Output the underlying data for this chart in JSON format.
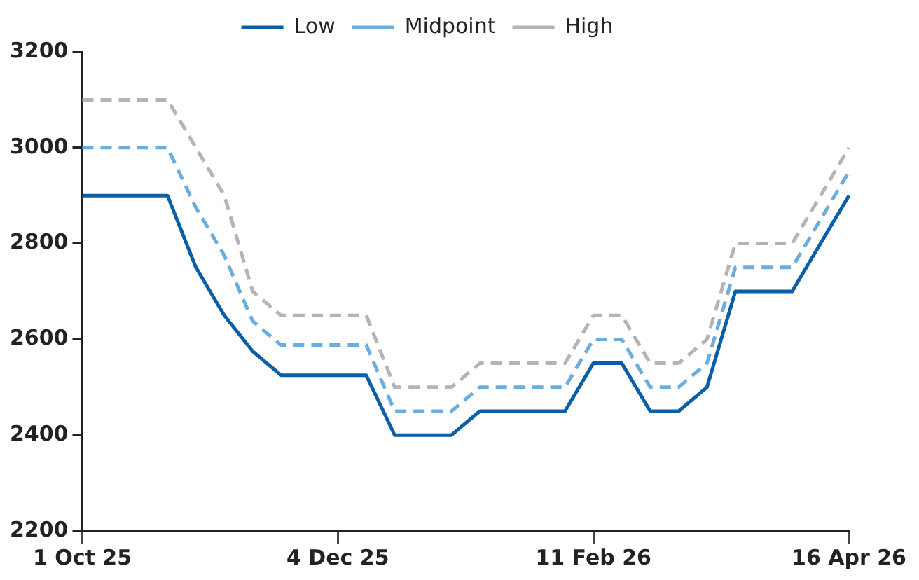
{
  "chart_data": {
    "type": "line",
    "categories": [
      "1 Oct 25",
      null,
      null,
      null,
      null,
      null,
      null,
      null,
      null,
      "4 Dec 25",
      null,
      null,
      null,
      null,
      null,
      null,
      null,
      null,
      "11 Feb 26",
      null,
      null,
      null,
      null,
      null,
      null,
      null,
      null,
      "16 Apr 26"
    ],
    "series": [
      {
        "name": "Low",
        "color": "#0b5fa8",
        "line_style": "solid",
        "values": [
          2900,
          2900,
          2900,
          2900,
          2750,
          2650,
          2575,
          2525,
          2525,
          2525,
          2525,
          2400,
          2400,
          2400,
          2450,
          2450,
          2450,
          2450,
          2550,
          2550,
          2450,
          2450,
          2500,
          2700,
          2700,
          2700,
          2800,
          2900
        ]
      },
      {
        "name": "Midpoint",
        "color": "#6aaee0",
        "line_style": "dashed",
        "values": [
          3000,
          3000,
          3000,
          3000,
          2875,
          2775,
          2638,
          2588,
          2588,
          2588,
          2588,
          2450,
          2450,
          2450,
          2500,
          2500,
          2500,
          2500,
          2600,
          2600,
          2500,
          2500,
          2550,
          2750,
          2750,
          2750,
          2850,
          2950
        ]
      },
      {
        "name": "High",
        "color": "#b4b4b4",
        "line_style": "dashed",
        "values": [
          3100,
          3100,
          3100,
          3100,
          3000,
          2900,
          2700,
          2650,
          2650,
          2650,
          2650,
          2500,
          2500,
          2500,
          2550,
          2550,
          2550,
          2550,
          2650,
          2650,
          2550,
          2550,
          2600,
          2800,
          2800,
          2800,
          2900,
          3000
        ]
      }
    ],
    "ylim": [
      2200,
      3200
    ],
    "yticks": [
      2200,
      2400,
      2600,
      2800,
      3000,
      3200
    ],
    "grid": false,
    "legend": "top",
    "marker": "none"
  }
}
